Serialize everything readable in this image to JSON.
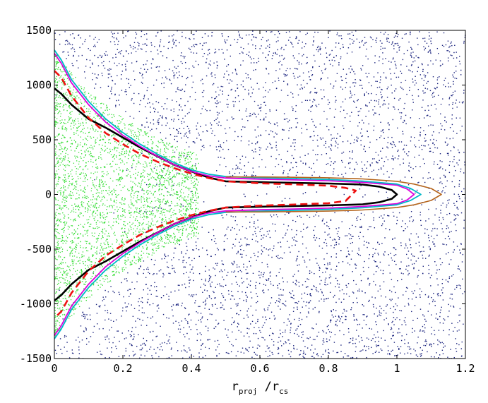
{
  "chart_data": {
    "type": "scatter",
    "title": "",
    "xlabel": {
      "main": "r",
      "sub1": "proj",
      "sep": " /r",
      "sub2": "cs"
    },
    "ylabel": "",
    "xlim": [
      0,
      1.2
    ],
    "ylim": [
      -1500,
      1500
    ],
    "xticks": [
      "0",
      "0.2",
      "0.4",
      "0.6",
      "0.8",
      "1",
      "1.2"
    ],
    "xtick_values": [
      0,
      0.2,
      0.4,
      0.6,
      0.8,
      1.0,
      1.2
    ],
    "yticks": [
      "1500",
      "1000",
      "500",
      "0",
      "-500",
      "-1000",
      "-1500"
    ],
    "ytick_values": [
      1500,
      1000,
      500,
      0,
      -500,
      -1000,
      -1500
    ],
    "grid": false,
    "colors": {
      "scatter_blue": "#1a237e",
      "scatter_green": "#33dd33",
      "black": "#000000",
      "red_dashed": "#ee1111",
      "magenta": "#dd00dd",
      "cyan": "#00b8c8",
      "brown": "#b5651d"
    },
    "scatter_series": [
      {
        "color_key": "scatter_blue",
        "x_range": [
          0.0,
          1.2
        ],
        "y_range": [
          -1500,
          1500
        ],
        "density": "dense"
      },
      {
        "color_key": "scatter_green",
        "x_range": [
          0.0,
          0.4
        ],
        "y_range": [
          -1200,
          1200
        ],
        "density": "dense"
      }
    ],
    "series": [
      {
        "color_key": "black",
        "style": "solid",
        "width": 2.6,
        "x": [
          0,
          0.02,
          0.05,
          0.1,
          0.15,
          0.2,
          0.25,
          0.3,
          0.35,
          0.4,
          0.45,
          0.5,
          0.6,
          0.7,
          0.8,
          0.9,
          0.95,
          0.985,
          1.0
        ],
        "y": [
          970,
          920,
          820,
          690,
          610,
          520,
          430,
          350,
          270,
          210,
          155,
          120,
          112,
          106,
          100,
          90,
          70,
          40,
          0
        ]
      },
      {
        "color_key": "red_dashed",
        "style": "dashed",
        "width": 2.6,
        "x": [
          0,
          0.02,
          0.05,
          0.1,
          0.15,
          0.2,
          0.25,
          0.3,
          0.35,
          0.4,
          0.45,
          0.5,
          0.6,
          0.7,
          0.8,
          0.85,
          0.88
        ],
        "y": [
          1130,
          1070,
          900,
          700,
          560,
          460,
          370,
          300,
          240,
          190,
          150,
          120,
          102,
          92,
          80,
          60,
          35
        ]
      },
      {
        "color_key": "magenta",
        "style": "solid",
        "width": 1.8,
        "x": [
          0,
          0.02,
          0.05,
          0.1,
          0.15,
          0.2,
          0.25,
          0.3,
          0.35,
          0.4,
          0.45,
          0.5,
          0.6,
          0.7,
          0.8,
          0.9,
          1.0,
          1.03,
          1.05
        ],
        "y": [
          1290,
          1200,
          1020,
          820,
          660,
          540,
          440,
          350,
          270,
          210,
          170,
          150,
          140,
          133,
          125,
          110,
          85,
          50,
          0
        ]
      },
      {
        "color_key": "cyan",
        "style": "solid",
        "width": 1.8,
        "x": [
          0,
          0.02,
          0.05,
          0.1,
          0.15,
          0.2,
          0.25,
          0.3,
          0.35,
          0.4,
          0.45,
          0.5,
          0.6,
          0.7,
          0.8,
          0.9,
          1.0,
          1.04,
          1.07
        ],
        "y": [
          1320,
          1230,
          1050,
          850,
          690,
          565,
          460,
          370,
          290,
          225,
          185,
          163,
          152,
          145,
          137,
          122,
          95,
          55,
          0
        ]
      },
      {
        "color_key": "brown",
        "style": "solid",
        "width": 1.6,
        "x": [
          0.5,
          0.6,
          0.7,
          0.8,
          0.9,
          1.0,
          1.05,
          1.1,
          1.13
        ],
        "y": [
          160,
          160,
          157,
          152,
          142,
          120,
          95,
          55,
          0
        ]
      }
    ],
    "mirror_about_zero": true
  }
}
